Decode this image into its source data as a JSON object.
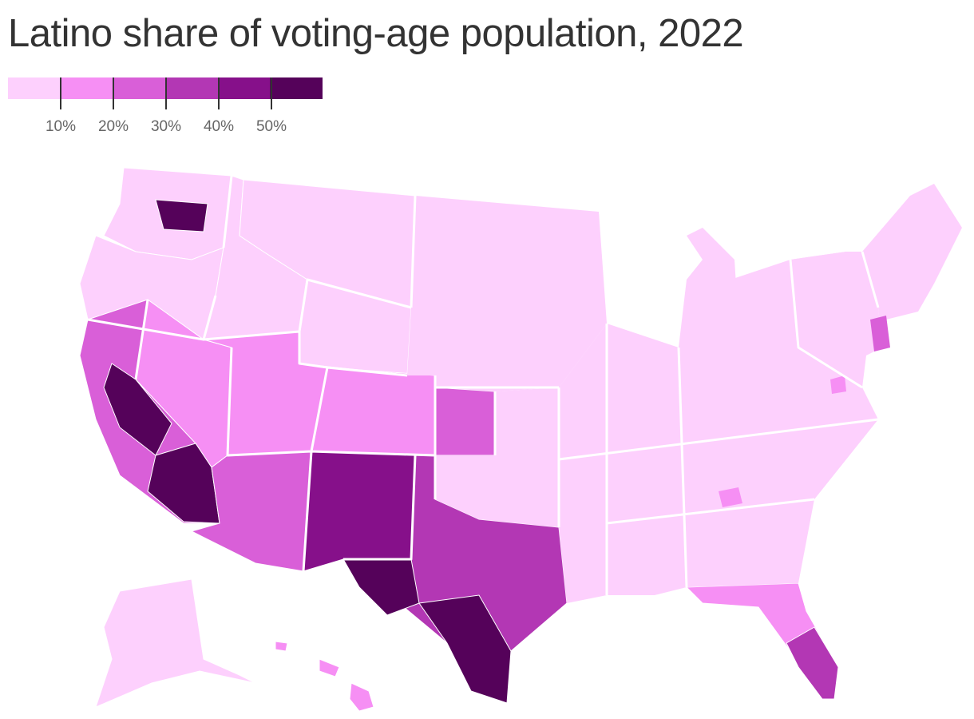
{
  "title": "Latino share of voting-age population, 2022",
  "legend": {
    "bins": [
      {
        "color": "#fdd0fd"
      },
      {
        "color": "#f68ff4"
      },
      {
        "color": "#d95fd8"
      },
      {
        "color": "#b337b4"
      },
      {
        "color": "#86108a"
      },
      {
        "color": "#55025a"
      }
    ],
    "ticks": [
      {
        "value": 10,
        "label": "10%"
      },
      {
        "value": 20,
        "label": "20%"
      },
      {
        "value": 30,
        "label": "30%"
      },
      {
        "value": 40,
        "label": "40%"
      },
      {
        "value": 50,
        "label": "50%"
      }
    ]
  },
  "chart_data": {
    "type": "choropleth",
    "title": "Latino share of voting-age population, 2022",
    "unit": "%",
    "breaks": [
      10,
      20,
      30,
      40,
      50
    ],
    "scale_colors": [
      "#fdd0fd",
      "#f68ff4",
      "#d95fd8",
      "#b337b4",
      "#86108a",
      "#55025a"
    ],
    "regions": [
      {
        "key": "wa",
        "level": 0
      },
      {
        "key": "wa-yakima",
        "level": 5
      },
      {
        "key": "or",
        "level": 0
      },
      {
        "key": "id",
        "level": 0
      },
      {
        "key": "mt",
        "level": 0
      },
      {
        "key": "wy",
        "level": 0
      },
      {
        "key": "nv",
        "level": 1
      },
      {
        "key": "ut",
        "level": 1
      },
      {
        "key": "ca",
        "level": 2
      },
      {
        "key": "ca-central-valley",
        "level": 5
      },
      {
        "key": "ca-south",
        "level": 5
      },
      {
        "key": "az",
        "level": 2
      },
      {
        "key": "co",
        "level": 1
      },
      {
        "key": "nm",
        "level": 4
      },
      {
        "key": "tx",
        "level": 3
      },
      {
        "key": "tx-west",
        "level": 5
      },
      {
        "key": "tx-south",
        "level": 5
      },
      {
        "key": "ks-west",
        "level": 2
      },
      {
        "key": "fl",
        "level": 1
      },
      {
        "key": "fl-south",
        "level": 3
      },
      {
        "key": "ak",
        "level": 0
      },
      {
        "key": "hi",
        "level": 1
      }
    ]
  }
}
